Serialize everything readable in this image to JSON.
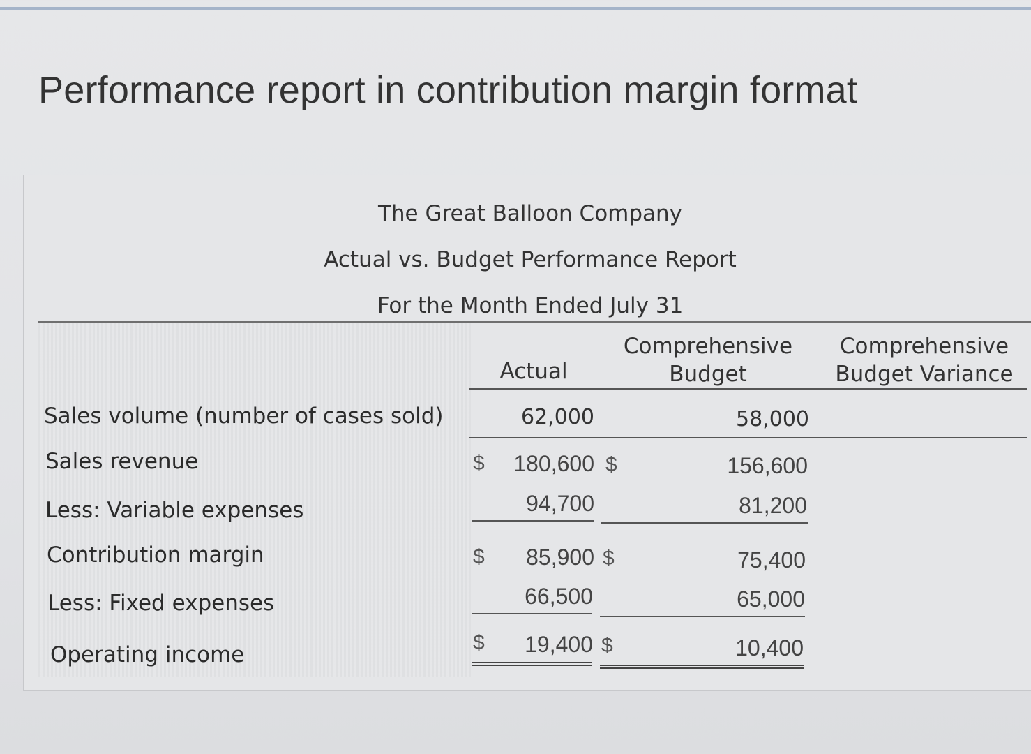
{
  "page_title": "Performance report in contribution margin format",
  "report": {
    "company": "The Great Balloon Company",
    "report_name": "Actual vs. Budget Performance Report",
    "period": "For the Month Ended July 31"
  },
  "columns": {
    "actual": "Actual",
    "budget_line1": "Comprehensive",
    "budget_line2": "Budget",
    "variance_line1": "Comprehensive",
    "variance_line2": "Budget Variance"
  },
  "rows": {
    "sales_volume": {
      "label": "Sales volume (number of cases sold)",
      "actual": "62,000",
      "budget": "58,000"
    },
    "sales_revenue": {
      "label": "Sales revenue",
      "actual_cur": "$",
      "actual": "180,600",
      "budget_cur": "$",
      "budget": "156,600"
    },
    "variable_expenses": {
      "label": "Less: Variable expenses",
      "actual": "94,700",
      "budget": "81,200"
    },
    "contribution_margin": {
      "label": "Contribution margin",
      "actual_cur": "$",
      "actual": "85,900",
      "budget_cur": "$",
      "budget": "75,400"
    },
    "fixed_expenses": {
      "label": "Less: Fixed expenses",
      "actual": "66,500",
      "budget": "65,000"
    },
    "operating_income": {
      "label": "Operating income",
      "actual_cur": "$",
      "actual": "19,400",
      "budget_cur": "$",
      "budget": "10,400"
    }
  }
}
